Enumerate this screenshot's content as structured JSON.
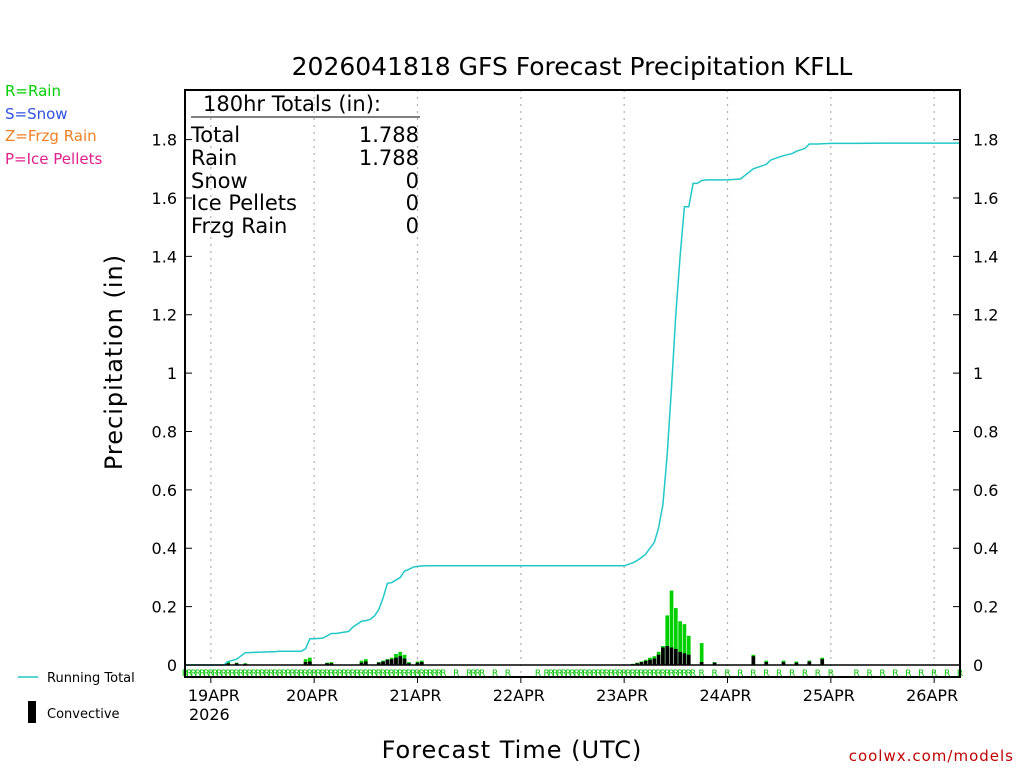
{
  "title": "2026041818 GFS Forecast Precipitation KFLL",
  "legend": [
    {
      "label": "R=Rain",
      "color": "#00d000"
    },
    {
      "label": "S=Snow",
      "color": "#3050e0"
    },
    {
      "label": "Z=Frzg Rain",
      "color": "#f08020"
    },
    {
      "label": "P=Ice Pellets",
      "color": "#e0208c"
    }
  ],
  "totals": {
    "header": "180hr Totals (in):",
    "rows": [
      {
        "label": "Total",
        "value": "1.788"
      },
      {
        "label": "Rain",
        "value": "1.788"
      },
      {
        "label": "Snow",
        "value": "0"
      },
      {
        "label": "Ice Pellets",
        "value": "0"
      },
      {
        "label": "Frzg Rain",
        "value": "0"
      }
    ]
  },
  "key": {
    "running_total": "Running Total",
    "convective": "Convective"
  },
  "credit": "coolwx.com/models",
  "colors": {
    "running_total": "#20c8c8",
    "rain_bar": "#00d000",
    "convective": "#000000",
    "gridline": "#b0b0b0"
  },
  "chart_data": {
    "type": "bar",
    "title": "2026041818 GFS Forecast Precipitation KFLL",
    "xlabel": "Forecast Time (UTC)",
    "ylabel": "Precipitation (in)",
    "ylim": [
      0,
      1.97
    ],
    "xlim_hours": [
      0,
      180
    ],
    "y_ticks": [
      0,
      0.2,
      0.4,
      0.6,
      0.8,
      1,
      1.2,
      1.4,
      1.6,
      1.8
    ],
    "y_tick_labels": [
      "0",
      "0.2",
      "0.4",
      "0.6",
      "0.8",
      "1",
      "1.2",
      "1.4",
      "1.6",
      "1.8"
    ],
    "x_ticks": [
      {
        "hour": 6,
        "label": "19APR"
      },
      {
        "hour": 30,
        "label": "20APR"
      },
      {
        "hour": 54,
        "label": "21APR"
      },
      {
        "hour": 78,
        "label": "22APR"
      },
      {
        "hour": 102,
        "label": "23APR"
      },
      {
        "hour": 126,
        "label": "24APR"
      },
      {
        "hour": 150,
        "label": "25APR"
      },
      {
        "hour": 174,
        "label": "26APR"
      }
    ],
    "x_year_label": "2026",
    "running_total": {
      "hours": [
        0,
        9,
        10,
        12,
        14,
        21,
        22,
        27,
        28,
        29,
        30,
        32,
        33,
        34,
        35,
        36,
        38,
        39,
        41,
        42,
        43,
        44,
        45,
        46,
        47,
        48,
        50,
        51,
        52,
        53,
        54,
        56,
        58,
        60,
        66,
        72,
        78,
        84,
        90,
        96,
        102,
        103,
        104,
        105,
        106,
        107,
        108,
        109,
        110,
        111,
        112,
        113,
        114,
        115,
        116,
        117,
        118,
        119,
        120,
        121,
        122,
        124,
        126,
        129,
        132,
        135,
        136,
        138,
        139,
        141,
        142,
        144,
        145,
        147,
        148,
        150,
        156,
        162,
        168,
        174,
        180
      ],
      "values": [
        0,
        0,
        0.012,
        0.02,
        0.042,
        0.046,
        0.047,
        0.047,
        0.056,
        0.09,
        0.09,
        0.092,
        0.1,
        0.108,
        0.108,
        0.11,
        0.115,
        0.13,
        0.15,
        0.152,
        0.156,
        0.168,
        0.19,
        0.23,
        0.28,
        0.282,
        0.3,
        0.322,
        0.328,
        0.335,
        0.338,
        0.34,
        0.34,
        0.34,
        0.34,
        0.34,
        0.34,
        0.34,
        0.34,
        0.34,
        0.34,
        0.345,
        0.35,
        0.358,
        0.368,
        0.38,
        0.4,
        0.42,
        0.47,
        0.55,
        0.72,
        0.95,
        1.2,
        1.4,
        1.57,
        1.57,
        1.65,
        1.65,
        1.66,
        1.662,
        1.662,
        1.662,
        1.662,
        1.665,
        1.7,
        1.715,
        1.73,
        1.74,
        1.745,
        1.752,
        1.76,
        1.77,
        1.785,
        1.785,
        1.786,
        1.787,
        1.787,
        1.788,
        1.788,
        1.788,
        1.788
      ]
    },
    "bars": [
      {
        "hour": 10,
        "rain": 0.012,
        "convective": 0.006
      },
      {
        "hour": 12,
        "rain": 0.008,
        "convective": 0.006
      },
      {
        "hour": 14,
        "rain": 0.006,
        "convective": 0.004
      },
      {
        "hour": 28,
        "rain": 0.02,
        "convective": 0.01
      },
      {
        "hour": 29,
        "rain": 0.025,
        "convective": 0.012
      },
      {
        "hour": 33,
        "rain": 0.008,
        "convective": 0.006
      },
      {
        "hour": 34,
        "rain": 0.01,
        "convective": 0.006
      },
      {
        "hour": 41,
        "rain": 0.015,
        "convective": 0.008
      },
      {
        "hour": 42,
        "rain": 0.02,
        "convective": 0.012
      },
      {
        "hour": 45,
        "rain": 0.01,
        "convective": 0.008
      },
      {
        "hour": 46,
        "rain": 0.015,
        "convective": 0.012
      },
      {
        "hour": 47,
        "rain": 0.02,
        "convective": 0.018
      },
      {
        "hour": 48,
        "rain": 0.025,
        "convective": 0.02
      },
      {
        "hour": 49,
        "rain": 0.038,
        "convective": 0.025
      },
      {
        "hour": 50,
        "rain": 0.045,
        "convective": 0.03
      },
      {
        "hour": 51,
        "rain": 0.035,
        "convective": 0.022
      },
      {
        "hour": 52,
        "rain": 0.01,
        "convective": 0.006
      },
      {
        "hour": 54,
        "rain": 0.012,
        "convective": 0.008
      },
      {
        "hour": 55,
        "rain": 0.015,
        "convective": 0.01
      },
      {
        "hour": 104,
        "rain": 0.004,
        "convective": 0.003
      },
      {
        "hour": 105,
        "rain": 0.008,
        "convective": 0.006
      },
      {
        "hour": 106,
        "rain": 0.012,
        "convective": 0.01
      },
      {
        "hour": 107,
        "rain": 0.018,
        "convective": 0.014
      },
      {
        "hour": 108,
        "rain": 0.025,
        "convective": 0.018
      },
      {
        "hour": 109,
        "rain": 0.03,
        "convective": 0.022
      },
      {
        "hour": 110,
        "rain": 0.045,
        "convective": 0.035
      },
      {
        "hour": 111,
        "rain": 0.065,
        "convective": 0.06
      },
      {
        "hour": 112,
        "rain": 0.17,
        "convective": 0.065
      },
      {
        "hour": 113,
        "rain": 0.255,
        "convective": 0.06
      },
      {
        "hour": 114,
        "rain": 0.195,
        "convective": 0.055
      },
      {
        "hour": 115,
        "rain": 0.15,
        "convective": 0.045
      },
      {
        "hour": 116,
        "rain": 0.14,
        "convective": 0.04
      },
      {
        "hour": 117,
        "rain": 0.1,
        "convective": 0.035
      },
      {
        "hour": 120,
        "rain": 0.075,
        "convective": 0.01
      },
      {
        "hour": 123,
        "rain": 0.01,
        "convective": 0.008
      },
      {
        "hour": 132,
        "rain": 0.035,
        "convective": 0.03
      },
      {
        "hour": 135,
        "rain": 0.015,
        "convective": 0.01
      },
      {
        "hour": 139,
        "rain": 0.015,
        "convective": 0.01
      },
      {
        "hour": 142,
        "rain": 0.012,
        "convective": 0.008
      },
      {
        "hour": 145,
        "rain": 0.015,
        "convective": 0.012
      },
      {
        "hour": 148,
        "rain": 0.025,
        "convective": 0.02
      }
    ],
    "precip_type_marker": "R",
    "precip_type_hours": [
      0,
      1,
      2,
      3,
      4,
      5,
      6,
      7,
      8,
      9,
      10,
      11,
      12,
      13,
      14,
      15,
      16,
      17,
      18,
      19,
      20,
      21,
      22,
      23,
      24,
      25,
      26,
      27,
      28,
      29,
      30,
      31,
      32,
      33,
      34,
      35,
      36,
      37,
      38,
      39,
      40,
      41,
      42,
      43,
      44,
      45,
      46,
      47,
      48,
      49,
      50,
      51,
      52,
      53,
      54,
      55,
      56,
      57,
      58,
      59,
      60,
      63,
      66,
      67,
      68,
      69,
      72,
      75,
      82,
      84,
      85,
      86,
      87,
      88,
      89,
      90,
      91,
      92,
      93,
      94,
      95,
      96,
      97,
      98,
      99,
      100,
      101,
      102,
      103,
      104,
      105,
      106,
      107,
      108,
      109,
      110,
      111,
      112,
      113,
      114,
      115,
      116,
      117,
      118,
      120,
      123,
      126,
      129,
      132,
      135,
      138,
      141,
      144,
      147,
      150,
      156,
      159,
      162,
      165,
      168,
      171,
      174,
      177,
      180
    ]
  }
}
